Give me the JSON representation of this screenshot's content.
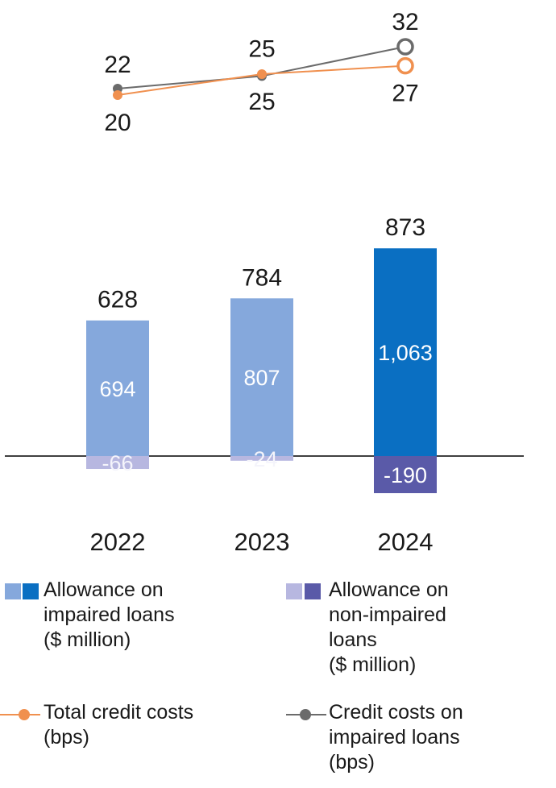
{
  "chart_data": {
    "type": "bar",
    "categories": [
      "2022",
      "2023",
      "2024"
    ],
    "series": [
      {
        "name": "Allowance on impaired loans ($ million)",
        "values": [
          694,
          807,
          1063
        ],
        "colors": [
          "#85a8dc",
          "#85a8dc",
          "#0a6fc2"
        ]
      },
      {
        "name": "Allowance on non-impaired loans ($ million)",
        "values": [
          -66,
          -24,
          -190
        ],
        "colors": [
          "#b7b7e0",
          "#b7b7e0",
          "#5a5aa8"
        ]
      }
    ],
    "totals": [
      628,
      784,
      873
    ],
    "value_labels": {
      "impaired": [
        "694",
        "807",
        "1,063"
      ],
      "non_impaired": [
        "-66",
        "-24",
        "-190"
      ],
      "totals": [
        "628",
        "784",
        "873"
      ]
    },
    "lines": [
      {
        "name": "Total credit costs (bps)",
        "values": [
          20,
          25,
          27
        ],
        "labels": [
          "20",
          "25",
          "27"
        ],
        "color": "#f0904f"
      },
      {
        "name": "Credit costs on impaired loans (bps)",
        "values": [
          22,
          25,
          32
        ],
        "labels": [
          "22",
          "25",
          "32"
        ],
        "color": "#6b6b6b"
      }
    ]
  },
  "legend": {
    "impaired": {
      "label": "Allowance on\nimpaired loans\n($ million)",
      "colors": [
        "#85a8dc",
        "#0a6fc2"
      ]
    },
    "non_impaired": {
      "label": "Allowance on\nnon-impaired\nloans\n($ million)",
      "colors": [
        "#b7b7e0",
        "#5a5aa8"
      ]
    },
    "total_costs": {
      "label": "Total credit costs\n(bps)",
      "color": "#f0904f"
    },
    "impaired_costs": {
      "label": "Credit costs on\nimpaired loans\n(bps)",
      "color": "#6b6b6b"
    }
  }
}
